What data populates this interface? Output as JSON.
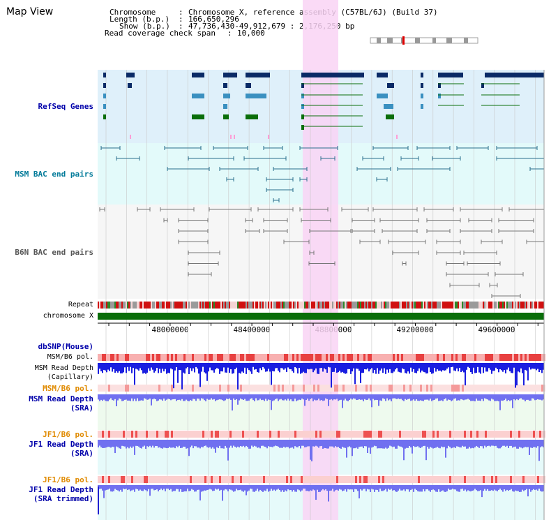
{
  "view": {
    "title": "Map View",
    "header": {
      "chromosome_key": "Chromosome",
      "chromosome_value": "Chromosome X, reference assembly (C57BL/6J) (Build 37)",
      "length_key": "Length (b.p.)",
      "length_value": "166,650,296",
      "show_key": "Show (b.p.)",
      "show_value": "47,736,430-49,912,679 : 2,176,250 bp",
      "span_key": "Read coverage check span",
      "span_value": "10,000"
    }
  },
  "tracks": {
    "refseq": "RefSeq Genes",
    "msm_bac": "MSM BAC end pairs",
    "b6n_bac": "B6N BAC end pairs",
    "repeat": "Repeat",
    "chromosome": "chromosome X",
    "dbsnp": "dbSNP(Mouse)",
    "msm_pol": "MSM/B6 pol.",
    "msm_depth_cap_1": "MSM Read Depth",
    "msm_depth_cap_2": "(Capillary)",
    "msm_pol_sra": "MSM/B6 pol.",
    "msm_depth_sra_1": "MSM Read Depth",
    "msm_depth_sra_2": "(SRA)",
    "jf1_pol_1": "JF1/B6 pol.",
    "jf1_depth_1a": "JF1 Read Depth",
    "jf1_depth_1b": "(SRA)",
    "jf1_pol_2": "JF1/B6 pol.",
    "jf1_depth_2a": "JF1 Read Depth",
    "jf1_depth_2b": "(SRA trimmed)"
  },
  "axis": {
    "tick_labels": [
      "48000000",
      "48400000",
      "48800000",
      "49200000",
      "49600000"
    ]
  },
  "colors": {
    "highlight": "#f9d3f5",
    "refseq_bg": "#dff0fa",
    "bac_bg": "#e3fafa",
    "b6n_bg": "#f6f6f6",
    "chromosome": "#0a6e0a",
    "depth_cap": "#1a1ee0",
    "depth_sra": "#7070f0",
    "label_blue": "#0000aa",
    "label_orange": "#e08a00"
  }
}
